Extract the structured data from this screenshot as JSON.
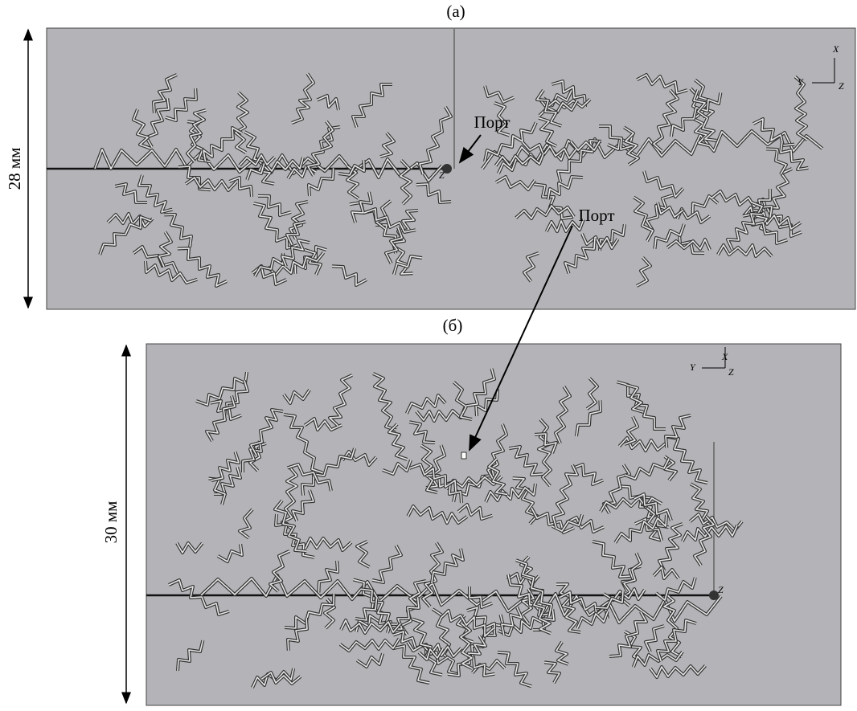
{
  "panel_a": {
    "label": "(a)",
    "dimension": "28 мм",
    "port_label": "Порт",
    "axes": {
      "x": "X",
      "y": "Y",
      "z": "Z"
    }
  },
  "panel_b": {
    "label": "(б)",
    "dimension": "30 мм",
    "port_label": "Порт",
    "axes": {
      "x": "X",
      "y": "Y",
      "z": "Z"
    }
  }
}
